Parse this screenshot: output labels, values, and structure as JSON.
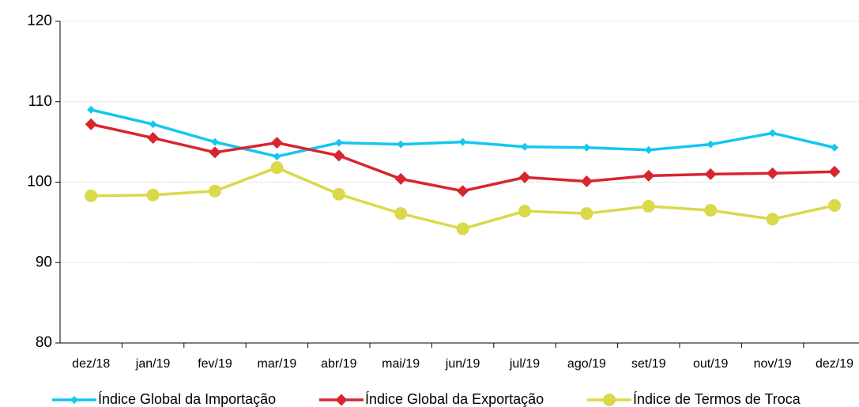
{
  "chart_data": {
    "type": "line",
    "categories": [
      "dez/18",
      "jan/19",
      "fev/19",
      "mar/19",
      "abr/19",
      "mai/19",
      "jun/19",
      "jul/19",
      "ago/19",
      "set/19",
      "out/19",
      "nov/19",
      "dez/19"
    ],
    "series": [
      {
        "name": "Índice Global da Importação",
        "color": "#16c6f0",
        "marker": "diamond",
        "values": [
          109.0,
          107.2,
          105.0,
          103.2,
          104.9,
          104.7,
          105.0,
          104.4,
          104.3,
          104.0,
          104.7,
          106.1,
          104.3
        ]
      },
      {
        "name": "Índice Global da Exportação",
        "color": "#d7262e",
        "marker": "diamond",
        "values": [
          107.2,
          105.5,
          103.7,
          104.9,
          103.3,
          100.4,
          98.9,
          100.6,
          100.1,
          100.8,
          101.0,
          101.1,
          101.3
        ]
      },
      {
        "name": "Índice de Termos de Troca",
        "color": "#d9d94a",
        "marker": "circle",
        "values": [
          98.3,
          98.4,
          98.9,
          101.8,
          98.5,
          96.1,
          94.2,
          96.4,
          96.1,
          97.0,
          96.5,
          95.4,
          97.1
        ]
      }
    ],
    "ylim": [
      80,
      120
    ],
    "yticks": [
      80,
      90,
      100,
      110,
      120
    ],
    "grid": true,
    "legend": "bottom"
  }
}
